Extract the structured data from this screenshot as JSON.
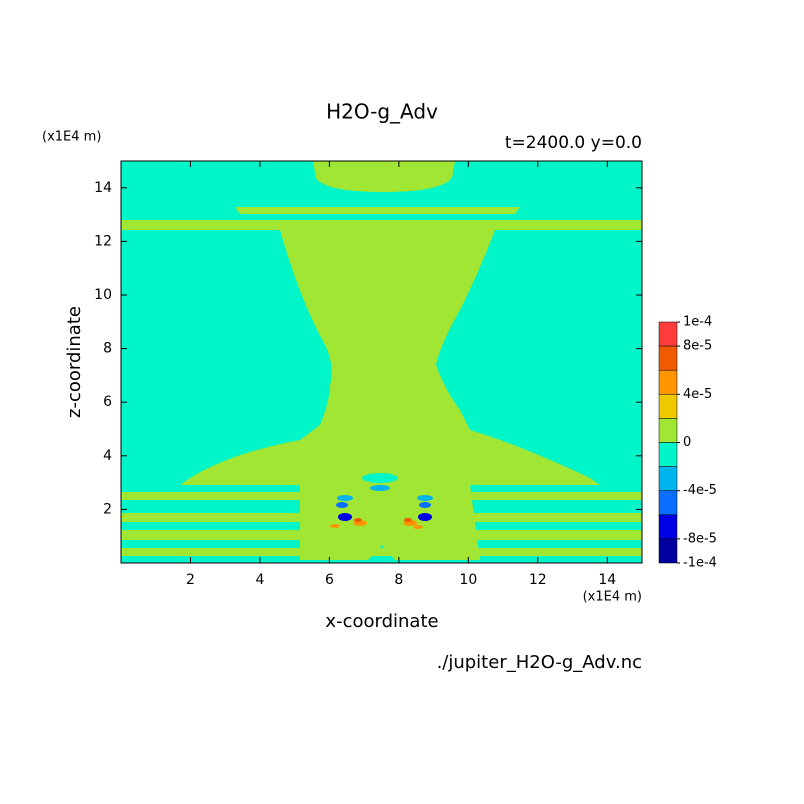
{
  "chart_data": {
    "type": "contour",
    "title": "H2O-g_Adv",
    "subtitle": "t=2400.0 y=0.0",
    "x_label": "x-coordinate",
    "y_label": "z-coordinate",
    "x_unit": "(x1E4 m)",
    "y_unit": "(x1E4 m)",
    "source": "./jupiter_H2O-g_Adv.nc",
    "xlim": [
      0,
      15
    ],
    "ylim": [
      0,
      15
    ],
    "xticks": [
      2,
      4,
      6,
      8,
      10,
      12,
      14
    ],
    "yticks": [
      2,
      4,
      6,
      8,
      10,
      12,
      14
    ],
    "colorbar": {
      "range": [
        {
          "value": -0.0001,
          "label": "-1e-4"
        },
        {
          "value": 0.0001,
          "label": "1e-4"
        }
      ],
      "colors": [
        "#ff3c3c",
        "#f05a00",
        "#ff9600",
        "#f0c800",
        "#a0e632",
        "#00f5c8",
        "#00b4f0",
        "#0a6eff",
        "#0000e6",
        "#0000a0"
      ],
      "ticks": [
        {
          "value": 0.0001,
          "label": "1e-4"
        },
        {
          "value": 8e-05,
          "label": "8e-5"
        },
        {
          "value": 4e-05,
          "label": "4e-5"
        },
        0,
        {
          "value": -4e-05,
          "label": "-4e-5"
        },
        {
          "value": -8e-05,
          "label": "-8e-5"
        },
        {
          "value": -0.0001,
          "label": "-1e-4"
        }
      ]
    }
  }
}
